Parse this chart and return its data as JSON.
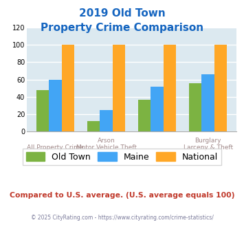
{
  "title_line1": "2019 Old Town",
  "title_line2": "Property Crime Comparison",
  "title_color": "#1565c0",
  "old_town": [
    48,
    12,
    37,
    56
  ],
  "maine": [
    60,
    25,
    52,
    66
  ],
  "national": [
    100,
    100,
    100,
    100
  ],
  "old_town_color": "#7cb342",
  "maine_color": "#42a5f5",
  "national_color": "#ffa726",
  "ylim": [
    0,
    120
  ],
  "yticks": [
    0,
    20,
    40,
    60,
    80,
    100,
    120
  ],
  "plot_bg": "#dce9f0",
  "legend_labels": [
    "Old Town",
    "Maine",
    "National"
  ],
  "top_labels": [
    "",
    "Arson",
    "",
    "Burglary"
  ],
  "bottom_labels": [
    "All Property Crime",
    "Motor Vehicle Theft",
    "",
    "Larceny & Theft"
  ],
  "footer_text": "Compared to U.S. average. (U.S. average equals 100)",
  "footer_color": "#c0392b",
  "copyright_text": "© 2025 CityRating.com - https://www.cityrating.com/crime-statistics/",
  "copyright_color": "#7a7a9a",
  "grid_color": "#ffffff",
  "label_color": "#a08888"
}
